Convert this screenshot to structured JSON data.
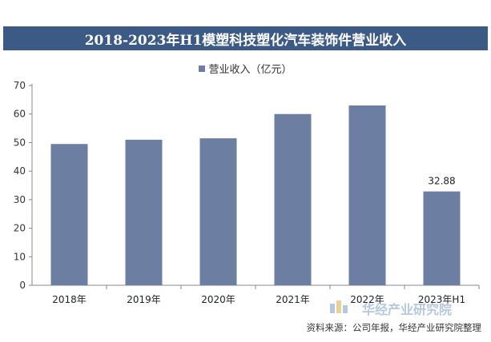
{
  "chart_data": {
    "type": "bar",
    "title": "2018-2023年H1模塑科技塑化汽车装饰件营业收入",
    "categories": [
      "2018年",
      "2019年",
      "2020年",
      "2021年",
      "2022年",
      "2023年H1"
    ],
    "series": [
      {
        "name": "营业收入（亿元）",
        "values": [
          49.5,
          51,
          51.5,
          60,
          63,
          32.88
        ]
      }
    ],
    "data_labels": [
      "",
      "",
      "",
      "",
      "",
      "32.88"
    ],
    "yticks": [
      0,
      10,
      20,
      30,
      40,
      50,
      60,
      70
    ],
    "ytick_labels": [
      "0",
      "10",
      "20",
      "30",
      "40",
      "50",
      "60",
      "70"
    ],
    "ylim": [
      0,
      70
    ],
    "xlabel": "",
    "ylabel": "",
    "legend_position": "top",
    "grid": false,
    "bar_color": "#6d7ea3"
  },
  "source_note": "资料来源：公司年报，华经产业研究院整理",
  "brand_watermark": "华经产业研究院"
}
